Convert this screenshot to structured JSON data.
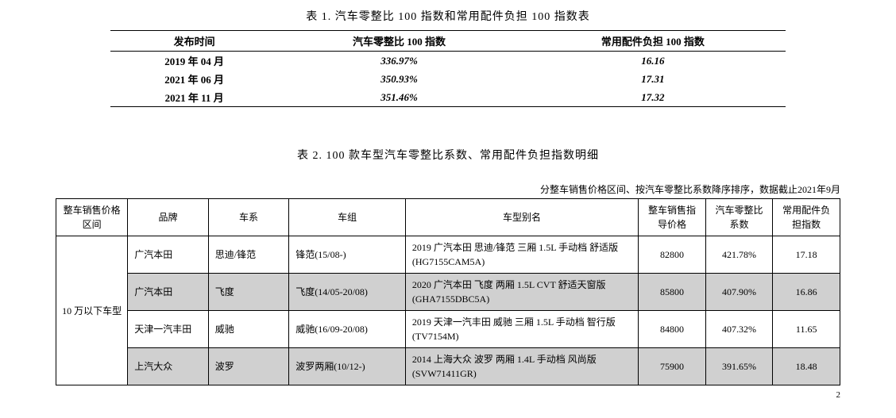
{
  "table1": {
    "caption": "表 1. 汽车零整比 100 指数和常用配件负担 100 指数表",
    "headers": [
      "发布时间",
      "汽车零整比 100 指数",
      "常用配件负担 100 指数"
    ],
    "rows": [
      [
        "2019 年 04 月",
        "336.97%",
        "16.16"
      ],
      [
        "2021 年 06 月",
        "350.93%",
        "17.31"
      ],
      [
        "2021 年 11 月",
        "351.46%",
        "17.32"
      ]
    ]
  },
  "table2": {
    "caption": "表 2. 100 款车型汽车零整比系数、常用配件负担指数明细",
    "note": "分整车销售价格区间、按汽车零整比系数降序排序，数据截止2021年9月",
    "headers": [
      "整车销售价格区间",
      "品牌",
      "车系",
      "车组",
      "车型别名",
      "整车销售指导价格",
      "汽车零整比系数",
      "常用配件负担指数"
    ],
    "price_range_label": "10 万以下车型",
    "rows": [
      {
        "brand": "广汽本田",
        "series": "思迪/锋范",
        "group": "锋范(15/08-)",
        "alias": "2019 广汽本田 思迪/锋范 三厢 1.5L 手动档 舒适版(HG7155CAM5A)",
        "price": "82800",
        "ratio": "421.78%",
        "parts_index": "17.18",
        "shaded": false
      },
      {
        "brand": "广汽本田",
        "series": "飞度",
        "group": "飞度(14/05-20/08)",
        "alias": "2020 广汽本田 飞度 两厢 1.5L CVT 舒适天窗版(GHA7155DBC5A)",
        "price": "85800",
        "ratio": "407.90%",
        "parts_index": "16.86",
        "shaded": true
      },
      {
        "brand": "天津一汽丰田",
        "series": "威驰",
        "group": "威驰(16/09-20/08)",
        "alias": "2019 天津一汽丰田 威驰 三厢 1.5L 手动档 智行版(TV7154M)",
        "price": "84800",
        "ratio": "407.32%",
        "parts_index": "11.65",
        "shaded": false
      },
      {
        "brand": "上汽大众",
        "series": "波罗",
        "group": "波罗两厢(10/12-)",
        "alias": "2014 上海大众 波罗 两厢 1.4L 手动档 风尚版(SVW71411GR)",
        "price": "75900",
        "ratio": "391.65%",
        "parts_index": "18.48",
        "shaded": true
      }
    ]
  },
  "page_number": "2"
}
